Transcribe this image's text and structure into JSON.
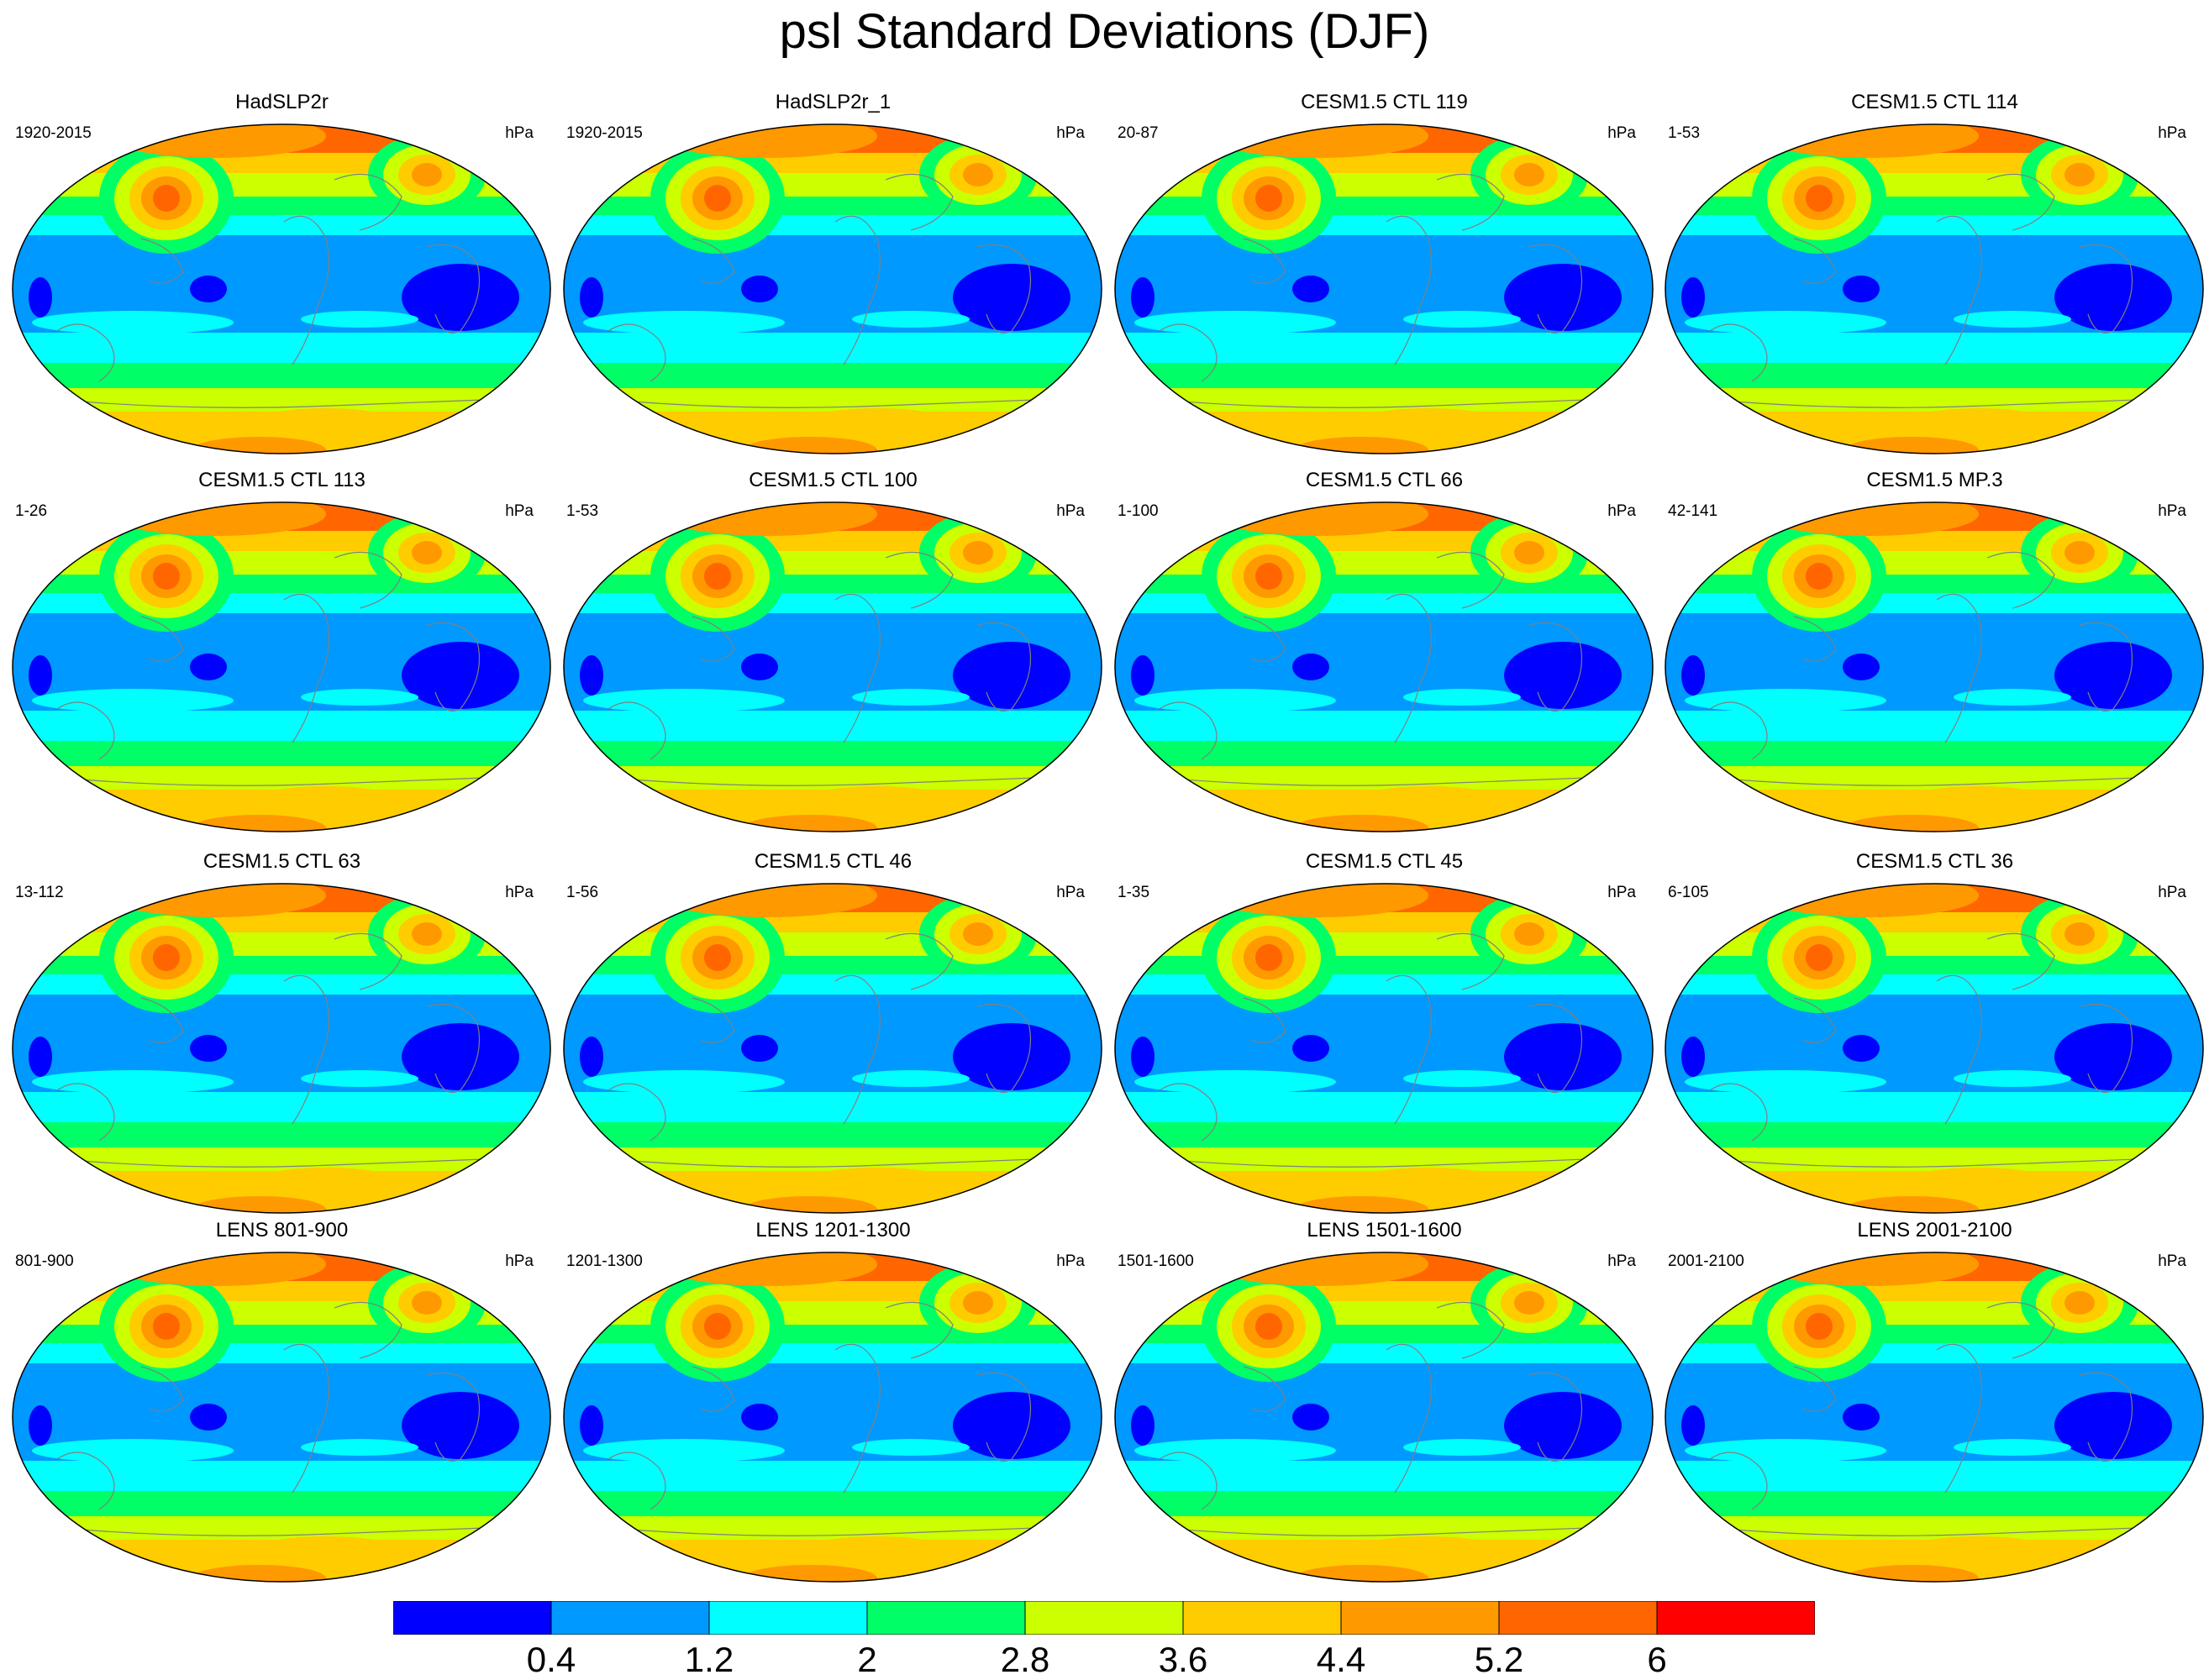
{
  "title": "psl Standard Deviations (DJF)",
  "units": "hPa",
  "panels": [
    {
      "title": "HadSLP2r",
      "period": "1920-2015"
    },
    {
      "title": "HadSLP2r_1",
      "period": "1920-2015"
    },
    {
      "title": "CESM1.5 CTL 119",
      "period": "20-87"
    },
    {
      "title": "CESM1.5 CTL 114",
      "period": "1-53"
    },
    {
      "title": "CESM1.5 CTL 113",
      "period": "1-26"
    },
    {
      "title": "CESM1.5 CTL 100",
      "period": "1-53"
    },
    {
      "title": "CESM1.5 CTL 66",
      "period": "1-100"
    },
    {
      "title": "CESM1.5 MP.3",
      "period": "42-141"
    },
    {
      "title": "CESM1.5 CTL 63",
      "period": "13-112"
    },
    {
      "title": "CESM1.5 CTL 46",
      "period": "1-56"
    },
    {
      "title": "CESM1.5 CTL 45",
      "period": "1-35"
    },
    {
      "title": "CESM1.5 CTL 36",
      "period": "6-105"
    },
    {
      "title": "LENS 801-900",
      "period": "801-900"
    },
    {
      "title": "LENS 1201-1300",
      "period": "1201-1300"
    },
    {
      "title": "LENS 1501-1600",
      "period": "1501-1600"
    },
    {
      "title": "LENS 2001-2100",
      "period": "2001-2100"
    }
  ],
  "colorbar": {
    "labels": [
      "0.4",
      "1.2",
      "2",
      "2.8",
      "3.6",
      "4.4",
      "5.2",
      "6"
    ],
    "colors": [
      "#0000ff",
      "#0099ff",
      "#00ffff",
      "#00ff66",
      "#ccff00",
      "#ffcc00",
      "#ff9900",
      "#ff6600",
      "#ff0000"
    ]
  }
}
